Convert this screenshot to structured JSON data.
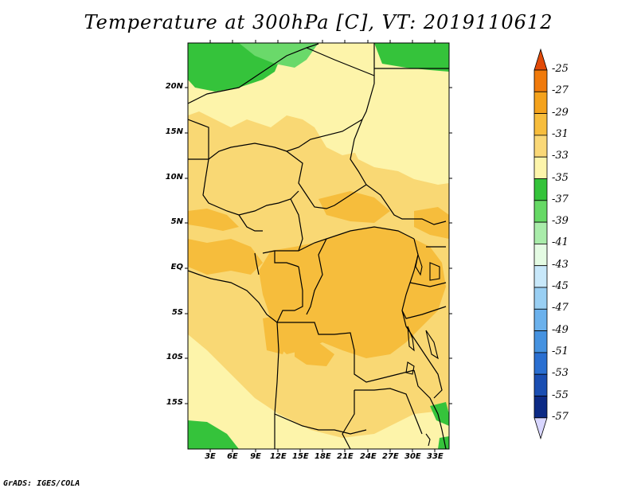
{
  "title": "Temperature at 300hPa [C], VT: 2019110612",
  "credit": "GrADS: IGES/COLA",
  "lat_labels": [
    "20N",
    "15N",
    "10N",
    "5N",
    "EQ",
    "5S",
    "10S",
    "15S"
  ],
  "lon_labels": [
    "3E",
    "6E",
    "9E",
    "12E",
    "15E",
    "18E",
    "21E",
    "24E",
    "27E",
    "30E",
    "33E"
  ],
  "colorbar": {
    "labels": [
      "-25",
      "-27",
      "-29",
      "-31",
      "-33",
      "-35",
      "-37",
      "-39",
      "-41",
      "-43",
      "-45",
      "-47",
      "-49",
      "-51",
      "-53",
      "-55",
      "-57"
    ],
    "colors": [
      "#e14a08",
      "#f07a0b",
      "#f4a21c",
      "#f7bd3c",
      "#fad877",
      "#fdf5ab",
      "#34c33a",
      "#66d965",
      "#a9ecaa",
      "#e4fbe3",
      "#c8e8fa",
      "#99cff3",
      "#6bb1ec",
      "#4592e0",
      "#2a6fd1",
      "#1a4eb2",
      "#0c2a85",
      "#d8d6ff"
    ]
  },
  "map": {
    "lon_range": [
      0,
      35
    ],
    "lat_range": [
      -19,
      25
    ]
  },
  "legend_colors": {
    "t31_33": "#f9d874",
    "t29_31": "#f6bd3c",
    "t33_35": "#fdf4aa",
    "t35_37": "#35c33b",
    "t37_39": "#6ad96a"
  }
}
